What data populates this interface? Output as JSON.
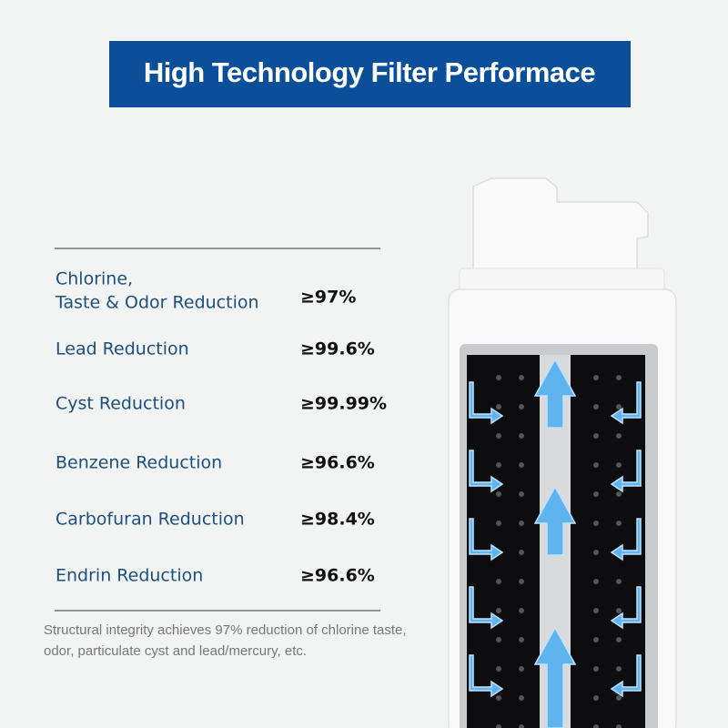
{
  "header": {
    "title": "High Technology Filter Performace"
  },
  "table": {
    "rows": [
      {
        "lines": [
          "Chlorine,",
          "Taste & Odor Reduction"
        ],
        "value": "≥97%"
      },
      {
        "lines": [
          "Lead Reduction"
        ],
        "value": "≥99.6%"
      },
      {
        "lines": [
          "Cyst Reduction"
        ],
        "value": "≥99.99%"
      },
      {
        "lines": [
          "Benzene Reduction"
        ],
        "value": "≥96.6%"
      },
      {
        "lines": [
          "Carbofuran Reduction"
        ],
        "value": "≥98.4%"
      },
      {
        "lines": [
          "Endrin Reduction"
        ],
        "value": "≥96.6%"
      }
    ]
  },
  "footnote": {
    "lines": [
      "Structural integrity achieves 97% reduction of chlorine taste,",
      "odor, particulate cyst and lead/mercury, etc."
    ]
  }
}
